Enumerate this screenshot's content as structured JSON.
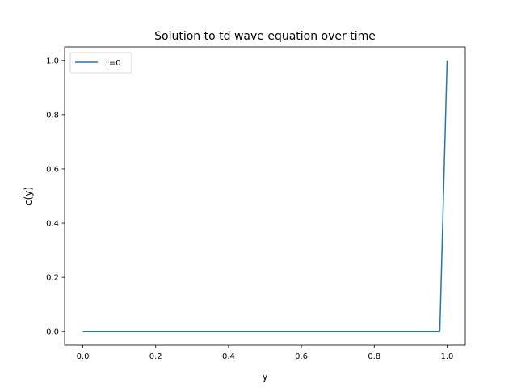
{
  "chart_data": {
    "type": "line",
    "title": "Solution to td wave equation over time",
    "xlabel": "y",
    "ylabel": "c(y)",
    "xlim": [
      -0.05,
      1.05
    ],
    "ylim": [
      -0.05,
      1.05
    ],
    "xticks": [
      0.0,
      0.2,
      0.4,
      0.6,
      0.8,
      1.0
    ],
    "xtick_labels": [
      "0.0",
      "0.2",
      "0.4",
      "0.6",
      "0.8",
      "1.0"
    ],
    "yticks": [
      0.0,
      0.2,
      0.4,
      0.6,
      0.8,
      1.0
    ],
    "ytick_labels": [
      "0.0",
      "0.2",
      "0.4",
      "0.6",
      "0.8",
      "1.0"
    ],
    "grid": false,
    "legend_position": "upper-left",
    "series": [
      {
        "name": "t=0",
        "color": "#1f77b4",
        "x": [
          0.0,
          0.98,
          1.0
        ],
        "y": [
          0.0,
          0.0,
          1.0
        ]
      }
    ]
  }
}
